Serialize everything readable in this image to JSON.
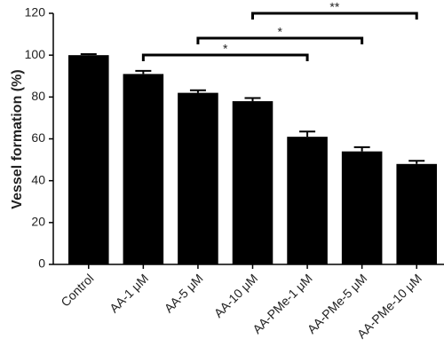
{
  "chart_data": {
    "type": "bar",
    "y_label": "Vessel formation (%)",
    "categories": [
      "Control",
      "AA-1 μM",
      "AA-5 μM",
      "AA-10 μM",
      "AA-PMe-1 μM",
      "AA-PMe-5 μM",
      "AA-PMe-10 μM"
    ],
    "values": [
      100,
      91,
      82,
      78,
      61,
      54,
      48
    ],
    "errors": [
      0.5,
      1.5,
      1.2,
      1.5,
      2.5,
      2,
      1.5
    ],
    "color": "#000000",
    "ylim": [
      0,
      120
    ],
    "yticks": [
      0,
      20,
      40,
      60,
      80,
      100,
      120
    ],
    "annotations": [
      {
        "from": 1,
        "to": 4,
        "text": "*"
      },
      {
        "from": 2,
        "to": 5,
        "text": "*"
      },
      {
        "from": 3,
        "to": 6,
        "text": "**"
      }
    ]
  }
}
